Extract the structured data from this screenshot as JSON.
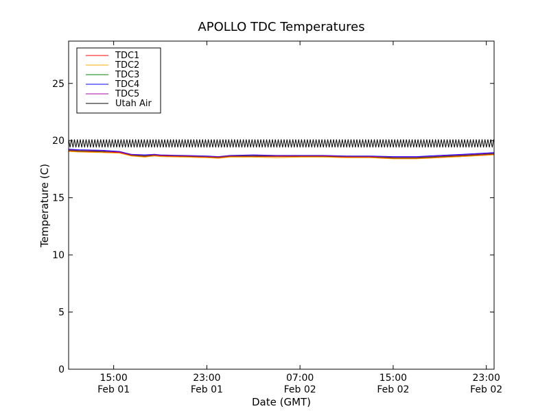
{
  "chart_data": {
    "type": "line",
    "title": "APOLLO TDC Temperatures",
    "xlabel": "Date (GMT)",
    "ylabel": "Temperature (C)",
    "ylim": [
      0,
      28.7
    ],
    "xlim": [
      "Feb 01 11:08",
      "Feb 02 23:40"
    ],
    "yticks": [
      0,
      5,
      10,
      15,
      20,
      25
    ],
    "xticks": [
      {
        "at": "Feb 01 15:00",
        "time": "15:00",
        "date": "Feb 01"
      },
      {
        "at": "Feb 01 23:00",
        "time": "23:00",
        "date": "Feb 01"
      },
      {
        "at": "Feb 02 07:00",
        "time": "07:00",
        "date": "Feb 02"
      },
      {
        "at": "Feb 02 15:00",
        "time": "15:00",
        "date": "Feb 02"
      },
      {
        "at": "Feb 02 23:00",
        "time": "23:00",
        "date": "Feb 02"
      }
    ],
    "grid": false,
    "legend_position": "top-left",
    "x_times": [
      "Feb 01 11:08",
      "Feb 01 12:00",
      "Feb 01 14:00",
      "Feb 01 15:30",
      "Feb 01 16:30",
      "Feb 01 17:40",
      "Feb 01 18:30",
      "Feb 01 19:00",
      "Feb 01 21:00",
      "Feb 01 23:00",
      "Feb 02 00:00",
      "Feb 02 01:00",
      "Feb 02 03:00",
      "Feb 02 05:00",
      "Feb 02 07:00",
      "Feb 02 09:00",
      "Feb 02 11:00",
      "Feb 02 13:00",
      "Feb 02 15:00",
      "Feb 02 17:00",
      "Feb 02 19:00",
      "Feb 02 21:00",
      "Feb 02 23:40"
    ],
    "series": [
      {
        "name": "TDC1",
        "color": "#ff0000",
        "values": [
          19.1,
          19.05,
          19.0,
          18.95,
          18.7,
          18.6,
          18.7,
          18.65,
          18.6,
          18.55,
          18.5,
          18.6,
          18.6,
          18.6,
          18.6,
          18.6,
          18.55,
          18.55,
          18.45,
          18.45,
          18.55,
          18.65,
          18.8
        ]
      },
      {
        "name": "TDC2",
        "color": "#ffaa00",
        "values": [
          19.05,
          19.0,
          18.95,
          18.9,
          18.65,
          18.55,
          18.65,
          18.6,
          18.55,
          18.5,
          18.45,
          18.55,
          18.55,
          18.5,
          18.55,
          18.55,
          18.5,
          18.5,
          18.4,
          18.4,
          18.5,
          18.6,
          18.75
        ]
      },
      {
        "name": "TDC3",
        "color": "#008000",
        "values": [
          19.15,
          19.1,
          19.05,
          19.0,
          18.75,
          18.65,
          18.75,
          18.7,
          18.65,
          18.6,
          18.55,
          18.65,
          18.65,
          18.65,
          18.65,
          18.65,
          18.6,
          18.6,
          18.5,
          18.5,
          18.6,
          18.7,
          18.85
        ]
      },
      {
        "name": "TDC4",
        "color": "#0000ff",
        "values": [
          19.25,
          19.2,
          19.15,
          19.05,
          18.8,
          18.75,
          18.8,
          18.75,
          18.7,
          18.65,
          18.6,
          18.7,
          18.75,
          18.7,
          18.7,
          18.7,
          18.65,
          18.65,
          18.6,
          18.6,
          18.7,
          18.8,
          18.95
        ]
      },
      {
        "name": "TDC5",
        "color": "#aa00aa",
        "values": [
          19.2,
          19.15,
          19.1,
          19.0,
          18.78,
          18.7,
          18.78,
          18.72,
          18.68,
          18.62,
          18.58,
          18.68,
          18.7,
          18.68,
          18.68,
          18.68,
          18.62,
          18.62,
          18.55,
          18.55,
          18.65,
          18.75,
          18.9
        ]
      },
      {
        "name": "Utah Air",
        "color": "#000000",
        "oscillating": true,
        "center": 19.75,
        "amplitude": 0.35,
        "period_minutes": 15
      }
    ]
  }
}
